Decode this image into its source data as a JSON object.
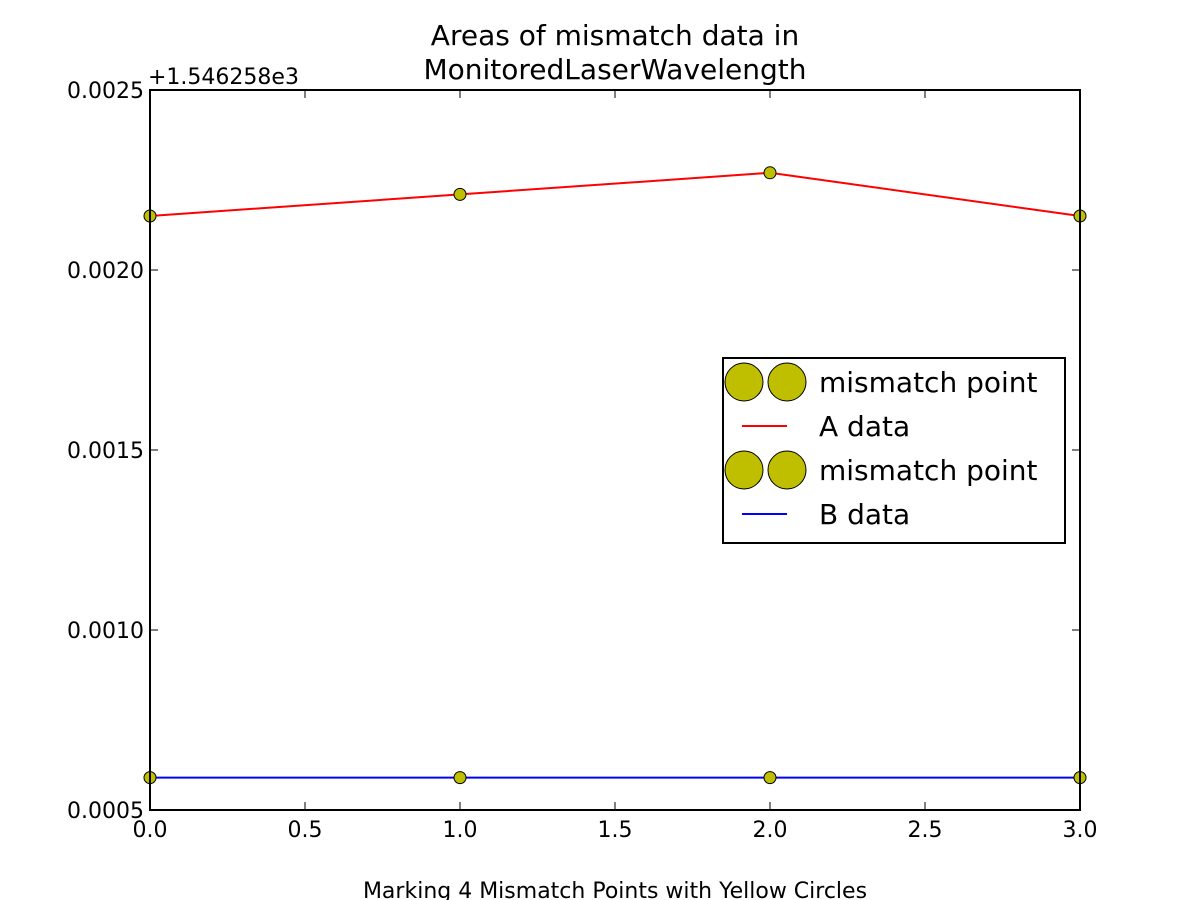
{
  "chart_data": {
    "type": "line",
    "title": "Areas of mismatch data in\nMonitoredLaserWavelength",
    "xlabel": "Marking 4 Mismatch Points with Yellow Circles",
    "ylabel": "",
    "offset_label": "+1.546258e3",
    "xlim": [
      0,
      3
    ],
    "ylim": [
      0.0005,
      0.0025
    ],
    "x_ticks": [
      "0.0",
      "0.5",
      "1.0",
      "1.5",
      "2.0",
      "2.5",
      "3.0"
    ],
    "y_ticks": [
      "0.0005",
      "0.0010",
      "0.0015",
      "0.0020",
      "0.0025"
    ],
    "x": [
      0,
      1,
      2,
      3
    ],
    "series": [
      {
        "name": "A data",
        "color": "#ff0000",
        "values": [
          0.00215,
          0.00221,
          0.00227,
          0.00215
        ]
      },
      {
        "name": "B data",
        "color": "#0000ff",
        "values": [
          0.00059,
          0.00059,
          0.00059,
          0.00059
        ]
      }
    ],
    "marker_color": "#bfbf00",
    "grid": false,
    "legend": {
      "placement": "center-right",
      "entries": [
        {
          "label": "mismatch point",
          "kind": "marker"
        },
        {
          "label": "A data",
          "kind": "line",
          "color": "#ff0000"
        },
        {
          "label": "mismatch point",
          "kind": "marker"
        },
        {
          "label": "B data",
          "kind": "line",
          "color": "#0000ff"
        }
      ]
    }
  }
}
